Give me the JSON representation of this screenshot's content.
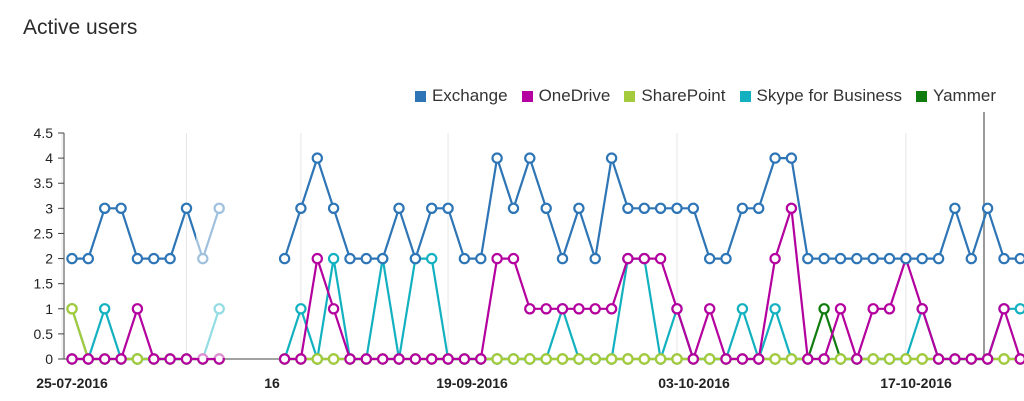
{
  "title": "Active users",
  "chart_data": {
    "type": "line",
    "title": "Active users",
    "ylim": [
      0,
      4.5
    ],
    "yticks": [
      "4.5",
      "4",
      "3.5",
      "3",
      "2.5",
      "2",
      "1.5",
      "1",
      "0.5",
      "0"
    ],
    "xtick_labels": [
      "25-07-2016",
      "16",
      "19-09-2016",
      "03-10-2016",
      "17-10-2016"
    ],
    "legend_position": "top-right",
    "grid": "vertical",
    "series": [
      {
        "name": "Exchange",
        "color": "#2e75b6",
        "values": [
          2,
          2,
          3,
          3,
          2,
          2,
          2,
          3,
          2,
          3,
          null,
          null,
          null,
          2,
          3,
          4,
          3,
          2,
          2,
          2,
          3,
          2,
          3,
          3,
          2,
          2,
          4,
          3,
          4,
          3,
          2,
          3,
          2,
          4,
          3,
          3,
          3,
          3,
          3,
          2,
          2,
          3,
          3,
          4,
          4,
          2,
          2,
          2,
          2,
          2,
          2,
          2,
          2,
          2,
          3,
          2,
          3,
          2,
          2
        ]
      },
      {
        "name": "OneDrive",
        "color": "#b4009e",
        "values": [
          0,
          0,
          0,
          0,
          1,
          0,
          0,
          0,
          0,
          0,
          null,
          null,
          null,
          0,
          0,
          2,
          1,
          0,
          0,
          0,
          0,
          0,
          0,
          0,
          0,
          0,
          2,
          2,
          1,
          1,
          1,
          1,
          1,
          1,
          2,
          2,
          2,
          1,
          0,
          1,
          0,
          0,
          0,
          2,
          3,
          0,
          0,
          1,
          0,
          1,
          1,
          2,
          1,
          0,
          0,
          0,
          0,
          1,
          0
        ]
      },
      {
        "name": "SharePoint",
        "color": "#a4cb3b",
        "values": [
          1,
          0,
          0,
          0,
          0,
          0,
          0,
          0,
          0,
          0,
          null,
          null,
          null,
          0,
          0,
          0,
          0,
          0,
          0,
          0,
          0,
          0,
          0,
          0,
          0,
          0,
          0,
          0,
          0,
          0,
          0,
          0,
          0,
          0,
          0,
          0,
          0,
          0,
          0,
          0,
          0,
          0,
          0,
          0,
          0,
          0,
          0,
          0,
          0,
          0,
          0,
          0,
          0,
          0,
          0,
          0,
          0,
          0,
          0
        ]
      },
      {
        "name": "Skype for Business",
        "color": "#13b1c0",
        "values": [
          1,
          0,
          1,
          0,
          0,
          0,
          0,
          0,
          0,
          1,
          null,
          null,
          null,
          0,
          1,
          0,
          2,
          0,
          0,
          2,
          0,
          2,
          2,
          0,
          0,
          0,
          0,
          0,
          0,
          0,
          1,
          0,
          0,
          0,
          2,
          2,
          0,
          1,
          0,
          0,
          0,
          1,
          0,
          1,
          0,
          0,
          0,
          0,
          0,
          0,
          0,
          0,
          1,
          0,
          0,
          0,
          0,
          1,
          1
        ]
      },
      {
        "name": "Yammer",
        "color": "#107c10",
        "values": [
          0,
          0,
          0,
          0,
          0,
          0,
          0,
          0,
          0,
          0,
          null,
          null,
          null,
          0,
          0,
          0,
          0,
          0,
          0,
          0,
          0,
          0,
          0,
          0,
          0,
          0,
          0,
          0,
          0,
          0,
          0,
          0,
          0,
          0,
          0,
          0,
          0,
          0,
          0,
          0,
          0,
          0,
          0,
          0,
          0,
          0,
          1,
          0,
          0,
          0,
          0,
          0,
          0,
          0,
          0,
          0,
          0,
          0,
          0
        ]
      }
    ]
  }
}
